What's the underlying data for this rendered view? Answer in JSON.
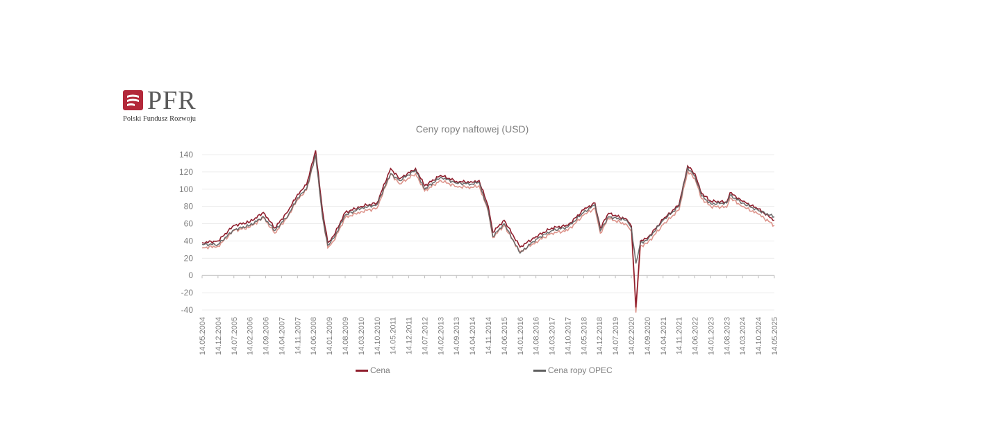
{
  "logo": {
    "brand": "PFR",
    "subtitle": "Polski Fundusz Rozwoju"
  },
  "colors": {
    "cena": "#8f1d2c",
    "cena_light": "#d98a80",
    "opec": "#5f5f5f",
    "grid": "#ececec",
    "axis": "#bfbfbf",
    "text": "#7f7f7f"
  },
  "chart_data": {
    "type": "line",
    "title": "Ceny ropy naftowej (USD)",
    "ylim": [
      -40,
      140
    ],
    "yticks": [
      -40,
      -20,
      0,
      20,
      40,
      60,
      80,
      100,
      120,
      140
    ],
    "xrange": [
      "2004-05-14",
      "2025-05-14"
    ],
    "xtick_labels": [
      "14.05.2004",
      "14.12.2004",
      "14.07.2005",
      "14.02.2006",
      "14.09.2006",
      "14.04.2007",
      "14.11.2007",
      "14.06.2008",
      "14.01.2009",
      "14.08.2009",
      "14.03.2010",
      "14.10.2010",
      "14.05.2011",
      "14.12.2011",
      "14.07.2012",
      "14.02.2013",
      "14.09.2013",
      "14.04.2014",
      "14.11.2014",
      "14.06.2015",
      "14.01.2016",
      "14.08.2016",
      "14.03.2017",
      "14.10.2017",
      "14.05.2018",
      "14.12.2018",
      "14.07.2019",
      "14.02.2020",
      "14.09.2020",
      "14.04.2021",
      "14.11.2021",
      "14.06.2022",
      "14.01.2023",
      "14.08.2023",
      "14.03.2024",
      "14.10.2024",
      "14.05.2025"
    ],
    "grid": true,
    "legend_position": "bottom",
    "series": [
      {
        "name": "Cena",
        "dates": [
          "2004-05-14",
          "2004-12-14",
          "2005-07-14",
          "2006-02-14",
          "2006-08-14",
          "2007-01-14",
          "2007-07-14",
          "2007-11-14",
          "2008-03-14",
          "2008-07-14",
          "2008-10-14",
          "2008-12-24",
          "2009-03-14",
          "2009-08-14",
          "2010-03-14",
          "2010-10-14",
          "2011-04-14",
          "2011-08-14",
          "2012-03-14",
          "2012-07-14",
          "2013-02-14",
          "2013-09-14",
          "2014-04-14",
          "2014-07-14",
          "2014-11-14",
          "2015-01-14",
          "2015-06-14",
          "2016-01-14",
          "2016-08-14",
          "2017-03-14",
          "2017-10-14",
          "2018-05-14",
          "2018-10-14",
          "2018-12-24",
          "2019-04-14",
          "2019-12-14",
          "2020-02-14",
          "2020-04-14",
          "2020-06-14",
          "2020-09-14",
          "2021-04-14",
          "2021-11-14",
          "2022-03-08",
          "2022-06-14",
          "2022-09-14",
          "2023-01-14",
          "2023-08-14",
          "2023-09-28",
          "2024-03-14",
          "2024-10-14",
          "2025-05-14"
        ],
        "values": [
          38,
          40,
          58,
          62,
          73,
          55,
          75,
          94,
          105,
          145,
          75,
          38,
          46,
          73,
          80,
          84,
          124,
          112,
          124,
          104,
          116,
          109,
          108,
          110,
          80,
          50,
          64,
          33,
          45,
          55,
          58,
          76,
          84,
          55,
          72,
          65,
          57,
          -37,
          40,
          43,
          65,
          82,
          127,
          118,
          95,
          86,
          85,
          96,
          86,
          77,
          64
        ]
      },
      {
        "name": "Cena ropy OPEC",
        "dates": [
          "2004-05-14",
          "2004-12-14",
          "2005-07-14",
          "2006-02-14",
          "2006-08-14",
          "2007-01-14",
          "2007-07-14",
          "2007-11-14",
          "2008-03-14",
          "2008-07-14",
          "2008-10-14",
          "2008-12-24",
          "2009-03-14",
          "2009-08-14",
          "2010-03-14",
          "2010-10-14",
          "2011-04-14",
          "2011-08-14",
          "2012-03-14",
          "2012-07-14",
          "2013-02-14",
          "2013-09-14",
          "2014-04-14",
          "2014-07-14",
          "2014-11-14",
          "2015-01-14",
          "2015-06-14",
          "2016-01-14",
          "2016-08-14",
          "2017-03-14",
          "2017-10-14",
          "2018-05-14",
          "2018-10-14",
          "2018-12-24",
          "2019-04-14",
          "2019-12-14",
          "2020-02-14",
          "2020-04-14",
          "2020-06-14",
          "2020-09-14",
          "2021-04-14",
          "2021-11-14",
          "2022-03-08",
          "2022-06-14",
          "2022-09-14",
          "2023-01-14",
          "2023-08-14",
          "2023-09-28",
          "2024-03-14",
          "2024-10-14",
          "2025-05-14"
        ],
        "values": [
          36,
          36,
          53,
          58,
          68,
          52,
          70,
          90,
          100,
          140,
          68,
          35,
          43,
          70,
          78,
          82,
          118,
          110,
          122,
          100,
          114,
          107,
          106,
          108,
          75,
          45,
          60,
          26,
          42,
          52,
          56,
          73,
          82,
          52,
          68,
          64,
          55,
          14,
          38,
          41,
          64,
          80,
          125,
          115,
          92,
          83,
          84,
          93,
          84,
          75,
          68
        ]
      }
    ]
  }
}
